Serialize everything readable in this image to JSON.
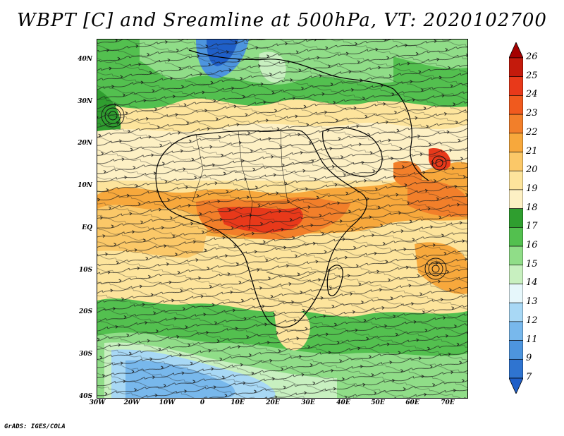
{
  "title": "WBPT [C] and Sreamline at 500hPa, VT: 2020102700",
  "credit": "GrADS: IGES/COLA",
  "latitude_labels": [
    "40N",
    "30N",
    "20N",
    "10N",
    "EQ",
    "10S",
    "20S",
    "30S",
    "40S"
  ],
  "longitude_labels": [
    "30W",
    "20W",
    "10W",
    "0",
    "10E",
    "20E",
    "30E",
    "40E",
    "50E",
    "60E",
    "70E"
  ],
  "colorbar": {
    "unit": "C",
    "labels": [
      "26",
      "25",
      "24",
      "23",
      "22",
      "21",
      "20",
      "19",
      "18",
      "17",
      "16",
      "15",
      "14",
      "13",
      "12",
      "11",
      "9",
      "7"
    ],
    "colors": [
      "#a50000",
      "#c41a0c",
      "#e8391a",
      "#f05a1e",
      "#f27f2a",
      "#f7a83c",
      "#fbc868",
      "#fde49c",
      "#fdf0c4",
      "#2f9e2f",
      "#53c04f",
      "#90dd88",
      "#c8f0c0",
      "#e6f7fb",
      "#a8d8f5",
      "#78b8ec",
      "#4d95de",
      "#2f74d0",
      "#1f5fc8"
    ]
  },
  "map": {
    "extent": {
      "lon_min": -30,
      "lon_max": 75,
      "lat_min": -40,
      "lat_max": 45
    },
    "variable": "Wet-bulb potential temperature (C) with 500hPa streamlines",
    "features": {
      "warm_core_peak_C": 24,
      "arabian_sea_peak_C": 23,
      "northern_cold_pool_C": 11,
      "southern_cold_pool_C": 12
    }
  }
}
